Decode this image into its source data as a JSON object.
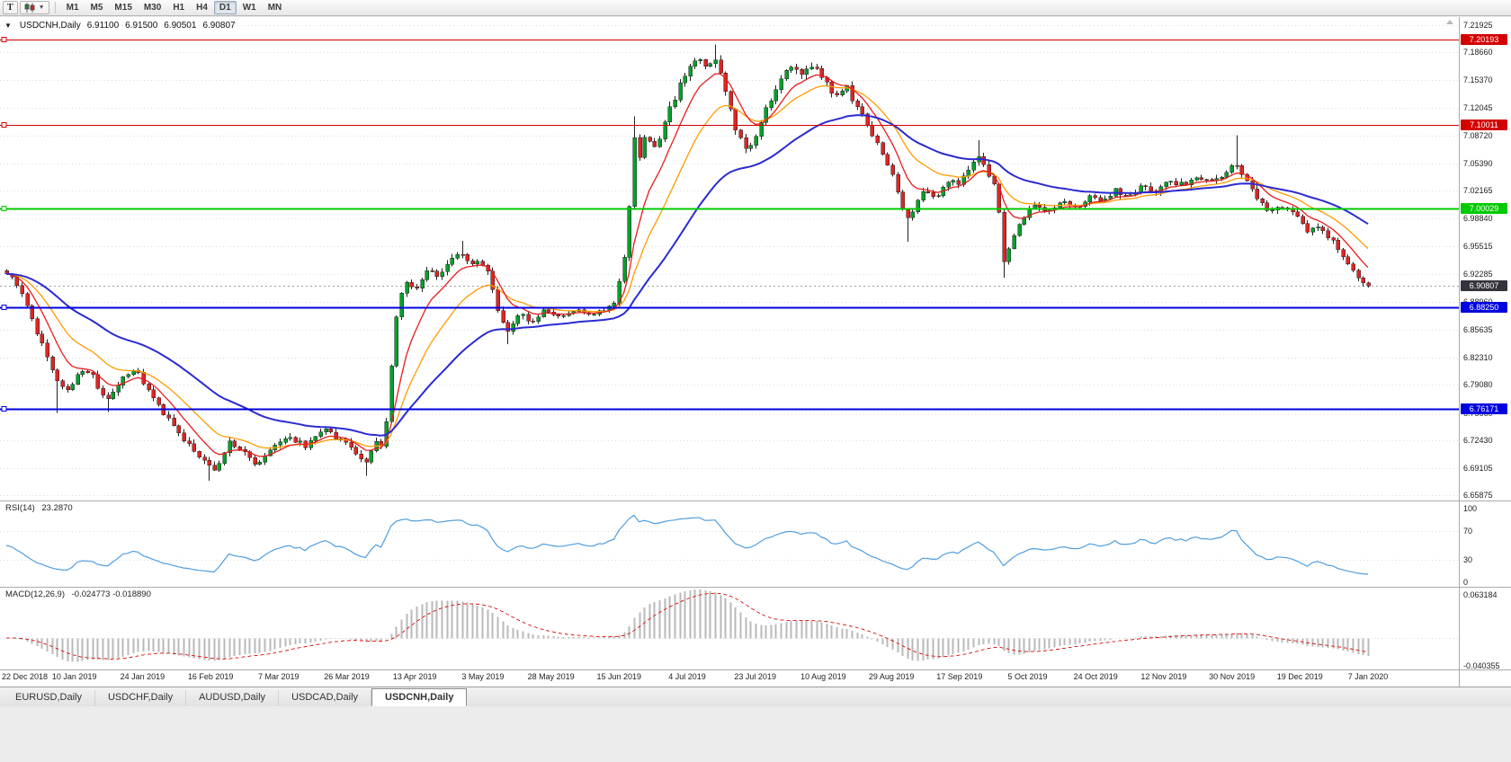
{
  "toolbar": {
    "chart_type_button": "T",
    "timeframes": [
      "M1",
      "M5",
      "M15",
      "M30",
      "H1",
      "H4",
      "D1",
      "W1",
      "MN"
    ],
    "active_timeframe": "D1"
  },
  "chart_header": {
    "collapse_icon": "▼",
    "title": "USDCNH,Daily",
    "open": "6.91100",
    "high": "6.91500",
    "low": "6.90501",
    "close": "6.90807"
  },
  "colors": {
    "candle_up": "#00a12b",
    "candle_down": "#e02424",
    "candle_outline": "#222222",
    "ma_fast_red": "#e81c1c",
    "ma_mid_orange": "#ff9b00",
    "ma_slow_blue": "#2a2ad2",
    "hline_red": "#d40000",
    "hline_green": "#00ca00",
    "hline_blue": "#0000e0",
    "bid_label_bg": "#34343c",
    "rsi_line": "#4f9ee0",
    "macd_histogram": "#b9b9b9",
    "macd_signal": "#e02424",
    "grid": "#dcdcdc"
  },
  "chart_data": {
    "type": "candlestick",
    "symbol": "USDCNH",
    "timeframe": "Daily",
    "bars": 270,
    "last_close": 6.90807,
    "bid_label": "6.90807",
    "y_axis": {
      "min": 6.6525,
      "max": 7.2275,
      "grid_labels": [
        "7.21925",
        "7.18660",
        "7.15370",
        "7.12045",
        "7.08720",
        "7.05390",
        "7.02165",
        "6.98840",
        "6.95515",
        "6.92285",
        "6.88960",
        "6.85635",
        "6.82310",
        "6.79080",
        "6.75660",
        "6.72430",
        "6.69105",
        "6.65875"
      ]
    },
    "x_axis": {
      "labels": [
        "22 Dec 2018",
        "10 Jan 2019",
        "24 Jan 2019",
        "16 Feb 2019",
        "7 Mar 2019",
        "26 Mar 2019",
        "13 Apr 2019",
        "3 May 2019",
        "28 May 2019",
        "15 Jun 2019",
        "4 Jul 2019",
        "23 Jul 2019",
        "10 Aug 2019",
        "29 Aug 2019",
        "17 Sep 2019",
        "5 Oct 2019",
        "24 Oct 2019",
        "12 Nov 2019",
        "30 Nov 2019",
        "19 Dec 2019",
        "7 Jan 2020"
      ]
    },
    "horizontal_lines": [
      {
        "value": 7.20193,
        "label": "7.20193",
        "color_key": "hline_red"
      },
      {
        "value": 7.10011,
        "label": "7.10011",
        "color_key": "hline_red"
      },
      {
        "value": 7.00029,
        "label": "7.00029",
        "color_key": "hline_green"
      },
      {
        "value": 6.8825,
        "label": "6.88250",
        "color_key": "hline_blue"
      },
      {
        "value": 6.76171,
        "label": "6.76171",
        "color_key": "hline_blue"
      }
    ],
    "moving_averages": [
      {
        "name": "fast",
        "period": 8,
        "color_key": "ma_fast_red"
      },
      {
        "name": "medium",
        "period": 17,
        "color_key": "ma_mid_orange"
      },
      {
        "name": "slow",
        "period": 40,
        "color_key": "ma_slow_blue"
      }
    ],
    "close_path_anchors": [
      [
        0,
        6.922
      ],
      [
        0.009,
        6.908
      ],
      [
        0.018,
        6.872
      ],
      [
        0.028,
        6.83
      ],
      [
        0.036,
        6.795
      ],
      [
        0.045,
        6.782
      ],
      [
        0.055,
        6.808
      ],
      [
        0.063,
        6.8
      ],
      [
        0.073,
        6.772
      ],
      [
        0.082,
        6.792
      ],
      [
        0.094,
        6.81
      ],
      [
        0.106,
        6.778
      ],
      [
        0.117,
        6.752
      ],
      [
        0.131,
        6.722
      ],
      [
        0.144,
        6.7
      ],
      [
        0.154,
        6.69
      ],
      [
        0.164,
        6.722
      ],
      [
        0.174,
        6.71
      ],
      [
        0.184,
        6.695
      ],
      [
        0.194,
        6.715
      ],
      [
        0.207,
        6.728
      ],
      [
        0.22,
        6.718
      ],
      [
        0.232,
        6.738
      ],
      [
        0.243,
        6.726
      ],
      [
        0.254,
        6.715
      ],
      [
        0.263,
        6.692
      ],
      [
        0.27,
        6.722
      ],
      [
        0.275,
        6.715
      ],
      [
        0.279,
        6.745
      ],
      [
        0.283,
        6.82
      ],
      [
        0.287,
        6.885
      ],
      [
        0.293,
        6.915
      ],
      [
        0.301,
        6.905
      ],
      [
        0.309,
        6.928
      ],
      [
        0.318,
        6.918
      ],
      [
        0.327,
        6.94
      ],
      [
        0.334,
        6.948
      ],
      [
        0.34,
        6.93
      ],
      [
        0.347,
        6.942
      ],
      [
        0.355,
        6.92
      ],
      [
        0.362,
        6.87
      ],
      [
        0.369,
        6.852
      ],
      [
        0.377,
        6.88
      ],
      [
        0.385,
        6.862
      ],
      [
        0.395,
        6.88
      ],
      [
        0.405,
        6.872
      ],
      [
        0.418,
        6.88
      ],
      [
        0.43,
        6.874
      ],
      [
        0.439,
        6.88
      ],
      [
        0.447,
        6.888
      ],
      [
        0.451,
        6.92
      ],
      [
        0.456,
        6.96
      ],
      [
        0.46,
        7.09
      ],
      [
        0.464,
        7.06
      ],
      [
        0.47,
        7.096
      ],
      [
        0.475,
        7.068
      ],
      [
        0.481,
        7.088
      ],
      [
        0.487,
        7.12
      ],
      [
        0.494,
        7.145
      ],
      [
        0.501,
        7.17
      ],
      [
        0.507,
        7.182
      ],
      [
        0.514,
        7.165
      ],
      [
        0.519,
        7.188
      ],
      [
        0.524,
        7.16
      ],
      [
        0.529,
        7.13
      ],
      [
        0.536,
        7.095
      ],
      [
        0.542,
        7.072
      ],
      [
        0.549,
        7.082
      ],
      [
        0.556,
        7.11
      ],
      [
        0.562,
        7.135
      ],
      [
        0.569,
        7.155
      ],
      [
        0.577,
        7.172
      ],
      [
        0.585,
        7.162
      ],
      [
        0.593,
        7.175
      ],
      [
        0.6,
        7.152
      ],
      [
        0.608,
        7.135
      ],
      [
        0.616,
        7.148
      ],
      [
        0.624,
        7.122
      ],
      [
        0.633,
        7.098
      ],
      [
        0.641,
        7.072
      ],
      [
        0.649,
        7.048
      ],
      [
        0.656,
        7.012
      ],
      [
        0.661,
        6.985
      ],
      [
        0.668,
        7.005
      ],
      [
        0.674,
        7.022
      ],
      [
        0.682,
        7.012
      ],
      [
        0.69,
        7.035
      ],
      [
        0.699,
        7.028
      ],
      [
        0.708,
        7.048
      ],
      [
        0.714,
        7.062
      ],
      [
        0.721,
        7.04
      ],
      [
        0.727,
        7.028
      ],
      [
        0.732,
        6.932
      ],
      [
        0.738,
        6.965
      ],
      [
        0.747,
        6.992
      ],
      [
        0.755,
        7.005
      ],
      [
        0.765,
        6.998
      ],
      [
        0.775,
        7.01
      ],
      [
        0.785,
        7.002
      ],
      [
        0.795,
        7.015
      ],
      [
        0.804,
        7.008
      ],
      [
        0.814,
        7.022
      ],
      [
        0.824,
        7.015
      ],
      [
        0.834,
        7.028
      ],
      [
        0.844,
        7.02
      ],
      [
        0.854,
        7.035
      ],
      [
        0.864,
        7.028
      ],
      [
        0.874,
        7.04
      ],
      [
        0.884,
        7.032
      ],
      [
        0.894,
        7.042
      ],
      [
        0.902,
        7.058
      ],
      [
        0.91,
        7.035
      ],
      [
        0.919,
        7.012
      ],
      [
        0.928,
        6.995
      ],
      [
        0.939,
        7.005
      ],
      [
        0.948,
        6.988
      ],
      [
        0.957,
        6.972
      ],
      [
        0.965,
        6.98
      ],
      [
        0.973,
        6.962
      ],
      [
        0.981,
        6.945
      ],
      [
        0.988,
        6.93
      ],
      [
        0.994,
        6.918
      ],
      [
        1,
        6.908
      ]
    ],
    "extra_wicks": [
      {
        "x": 0.036,
        "low": 6.757
      },
      {
        "x": 0.073,
        "low": 6.758
      },
      {
        "x": 0.149,
        "low": 6.676
      },
      {
        "x": 0.263,
        "low": 6.682
      },
      {
        "x": 0.334,
        "high": 6.962
      },
      {
        "x": 0.369,
        "low": 6.839
      },
      {
        "x": 0.46,
        "high": 7.11
      },
      {
        "x": 0.519,
        "high": 7.196
      },
      {
        "x": 0.661,
        "low": 6.961
      },
      {
        "x": 0.714,
        "high": 7.082
      },
      {
        "x": 0.732,
        "low": 6.918
      },
      {
        "x": 0.902,
        "high": 7.088
      }
    ]
  },
  "indicators": {
    "rsi": {
      "name": "RSI(14)",
      "value": "23.2870",
      "period": 14,
      "scale_labels": [
        "100",
        "70",
        "30",
        "0"
      ],
      "level_lines": [
        70,
        30
      ]
    },
    "macd": {
      "name": "MACD(12,26,9)",
      "values_text": "-0.024773 -0.018890",
      "fast": 12,
      "slow": 26,
      "signal": 9,
      "scale_top": 0.063184,
      "scale_bottom": -0.040355,
      "scale_top_label": "0.063184",
      "scale_bottom_label": "-0.040355"
    }
  },
  "tabs": {
    "items": [
      "EURUSD,Daily",
      "USDCHF,Daily",
      "AUDUSD,Daily",
      "USDCAD,Daily",
      "USDCNH,Daily"
    ],
    "active": "USDCNH,Daily"
  }
}
